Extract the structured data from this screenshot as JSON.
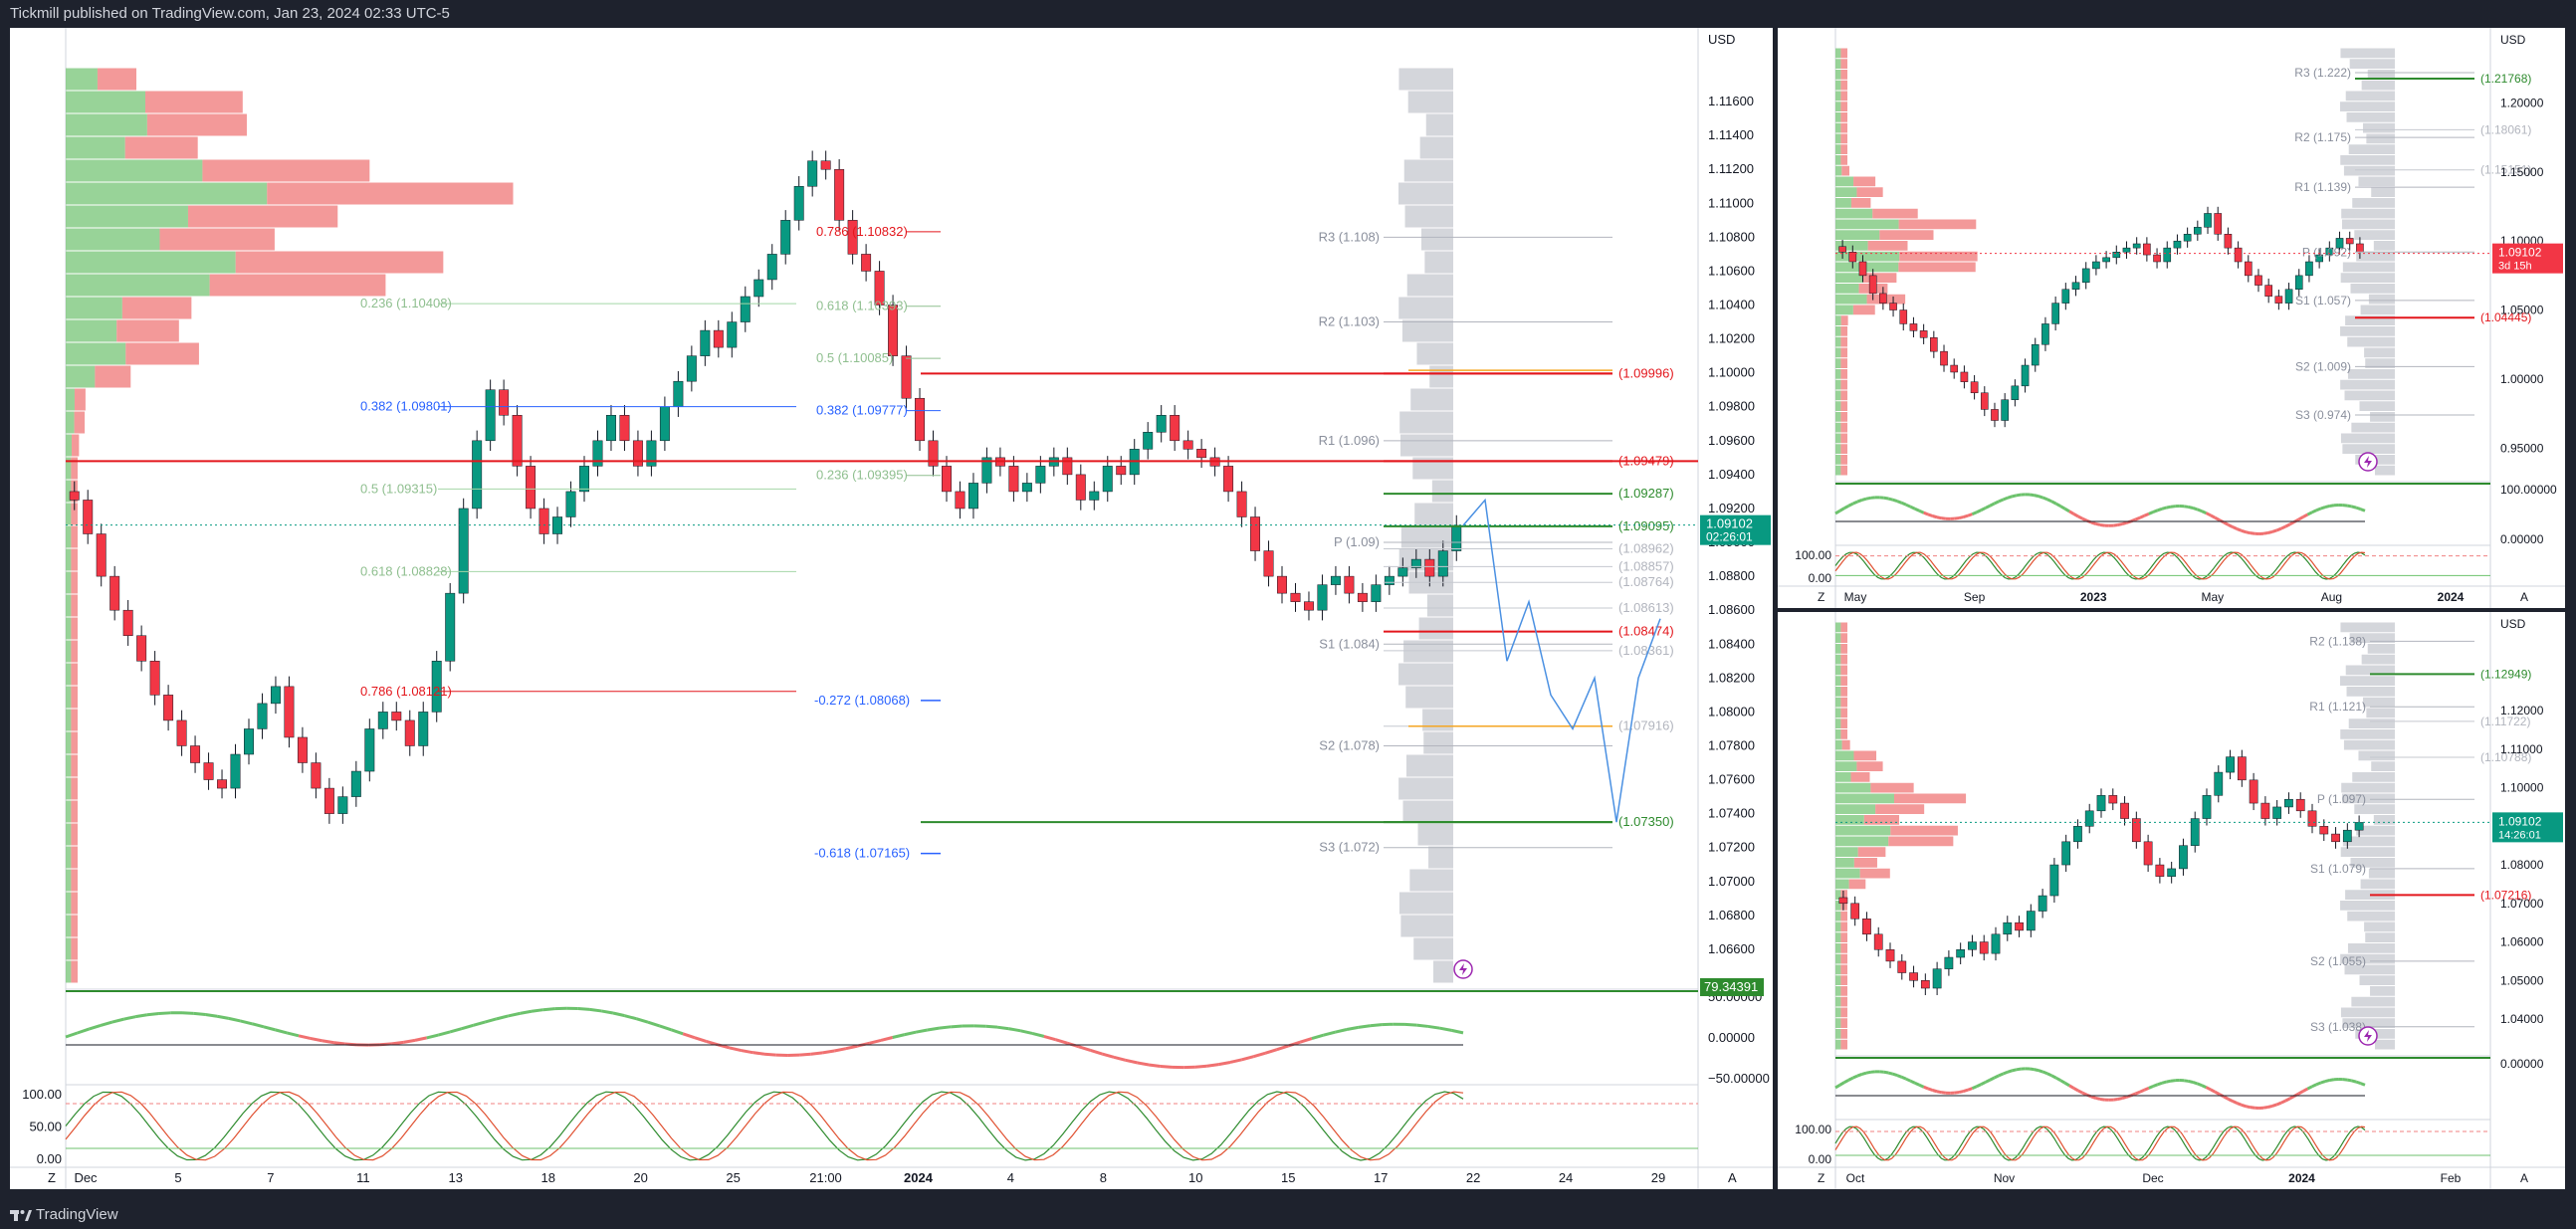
{
  "header": {
    "publisher_line": "Tickmill published on TradingView.com, Jan 23, 2024 02:33 UTC-5"
  },
  "footer": {
    "brand": "TradingView"
  },
  "colors": {
    "bull": "#089981",
    "bear": "#f23645",
    "green_line": "#2e8b2e",
    "red_line": "#e3161c",
    "bg": "#ffffff",
    "frame": "#1e222d",
    "axis_text": "#131722",
    "fib_blue": "#2962ff",
    "pivot_gray": "#8a8f9c",
    "orange": "#f5a623",
    "blue_path": "#4a90e2",
    "purple": "#9c27b0",
    "price_tag": "#089981",
    "price_tag_red": "#f23645"
  },
  "icons": [
    "tradingview-logo-icon",
    "lightning-icon"
  ],
  "chart_data": [
    {
      "type": "candlestick",
      "name": "main",
      "currency": "USD",
      "ylim": [
        1.064,
        1.118
      ],
      "y_ticks": [
        "1.11600",
        "1.11400",
        "1.11200",
        "1.11000",
        "1.10800",
        "1.10600",
        "1.10400",
        "1.10200",
        "1.10000",
        "1.09800",
        "1.09600",
        "1.09400",
        "1.09200",
        "1.09000",
        "1.08800",
        "1.08600",
        "1.08400",
        "1.08200",
        "1.08000",
        "1.07800",
        "1.07600",
        "1.07400",
        "1.07200",
        "1.07000",
        "1.06800",
        "1.06600"
      ],
      "x_ticks": [
        "Dec",
        "5",
        "7",
        "11",
        "13",
        "18",
        "20",
        "25",
        "21:00",
        "2024",
        "4",
        "8",
        "10",
        "15",
        "17",
        "22",
        "24",
        "29"
      ],
      "last_price": {
        "value": "1.09102",
        "countdown": "02:26:01"
      },
      "closes": [
        1.0925,
        1.0905,
        1.088,
        1.086,
        1.0845,
        1.083,
        1.081,
        1.0795,
        1.078,
        1.077,
        1.076,
        1.0755,
        1.0775,
        1.079,
        1.0805,
        1.0815,
        1.0785,
        1.077,
        1.0755,
        1.074,
        1.075,
        1.0765,
        1.079,
        1.08,
        1.0795,
        1.078,
        1.08,
        1.083,
        1.087,
        1.092,
        1.096,
        1.099,
        1.0975,
        1.0945,
        1.092,
        1.0905,
        1.0915,
        1.093,
        1.0945,
        1.096,
        1.0975,
        1.096,
        1.0945,
        1.096,
        1.098,
        1.0995,
        1.101,
        1.1025,
        1.1015,
        1.103,
        1.1045,
        1.1055,
        1.107,
        1.109,
        1.111,
        1.1125,
        1.112,
        1.109,
        1.107,
        1.106,
        1.104,
        1.101,
        1.0985,
        1.096,
        1.0945,
        1.093,
        1.092,
        1.0935,
        1.095,
        1.0945,
        1.093,
        1.0935,
        1.0945,
        1.095,
        1.094,
        1.0925,
        1.093,
        1.0945,
        1.094,
        1.0955,
        1.0965,
        1.0975,
        1.096,
        1.0955,
        1.095,
        1.0945,
        1.093,
        1.0915,
        1.0895,
        1.088,
        1.087,
        1.0865,
        1.086,
        1.0875,
        1.088,
        1.087,
        1.0865,
        1.0875,
        1.088,
        1.0885,
        1.089,
        1.088,
        1.0895,
        1.091
      ],
      "levels": [
        {
          "label": "R3 (1.108)",
          "value": 1.108,
          "kind": "pivot"
        },
        {
          "label": "R2 (1.103)",
          "value": 1.103,
          "kind": "pivot"
        },
        {
          "label": "R1 (1.096)",
          "value": 1.096,
          "kind": "pivot"
        },
        {
          "label": "P (1.09)",
          "value": 1.09,
          "kind": "pivot"
        },
        {
          "label": "S1 (1.084)",
          "value": 1.084,
          "kind": "pivot"
        },
        {
          "label": "S2 (1.078)",
          "value": 1.078,
          "kind": "pivot"
        },
        {
          "label": "S3 (1.072)",
          "value": 1.072,
          "kind": "pivot"
        },
        {
          "label": "(1.09996)",
          "value": 1.09996,
          "kind": "red"
        },
        {
          "label": "(1.09479)",
          "value": 1.09479,
          "kind": "red"
        },
        {
          "label": "(1.09287)",
          "value": 1.09287,
          "kind": "green"
        },
        {
          "label": "(1.09095)",
          "value": 1.09095,
          "kind": "green"
        },
        {
          "label": "(1.08962)",
          "value": 1.08962,
          "kind": "faint"
        },
        {
          "label": "(1.08857)",
          "value": 1.08857,
          "kind": "faint"
        },
        {
          "label": "(1.08764)",
          "value": 1.08764,
          "kind": "faint"
        },
        {
          "label": "(1.08613)",
          "value": 1.08613,
          "kind": "faint"
        },
        {
          "label": "(1.08474)",
          "value": 1.08474,
          "kind": "red"
        },
        {
          "label": "(1.08361)",
          "value": 1.08361,
          "kind": "faint"
        },
        {
          "label": "(1.07916)",
          "value": 1.07916,
          "kind": "faint"
        },
        {
          "label": "(1.07350)",
          "value": 1.0735,
          "kind": "green"
        }
      ],
      "fib_left": [
        {
          "label": "0.236 (1.10408)",
          "value": 1.10408
        },
        {
          "label": "0.382 (1.09801)",
          "value": 1.09801
        },
        {
          "label": "0.5 (1.09315)",
          "value": 1.09315
        },
        {
          "label": "0.618 (1.08828)",
          "value": 1.08828
        },
        {
          "label": "0.786 (1.08121)",
          "value": 1.08121
        }
      ],
      "fib_right": [
        {
          "label": "0.786 (1.10832)",
          "value": 1.10832
        },
        {
          "label": "0.618 (1.10393)",
          "value": 1.10393
        },
        {
          "label": "0.5 (1.10085)",
          "value": 1.10085
        },
        {
          "label": "0.382 (1.09777)",
          "value": 1.09777
        },
        {
          "label": "0.236 (1.09395)",
          "value": 1.09395
        }
      ],
      "fib_ext": [
        {
          "label": "-0.272 (1.08068)",
          "value": 1.08068
        },
        {
          "label": "-0.618 (1.07165)",
          "value": 1.07165
        }
      ],
      "forecast_path": [
        [
          0,
          1.091
        ],
        [
          1,
          1.0925
        ],
        [
          2,
          1.083
        ],
        [
          3,
          1.0865
        ],
        [
          4,
          1.081
        ],
        [
          5,
          1.079
        ],
        [
          6,
          1.082
        ],
        [
          7,
          1.0735
        ],
        [
          8,
          1.082
        ],
        [
          9,
          1.0855
        ]
      ],
      "osc1": {
        "ticks": [
          "50.00000",
          "0.00000",
          "−50.00000"
        ],
        "label": "79.34391"
      },
      "osc2": {
        "ticks": [
          "100.00",
          "50.00",
          "0.00"
        ]
      }
    },
    {
      "type": "candlestick",
      "name": "top-right",
      "currency": "USD",
      "ylim": [
        0.93,
        1.24
      ],
      "y_ticks": [
        "1.20000",
        "1.15000",
        "1.10000",
        "1.05000",
        "1.00000",
        "0.95000"
      ],
      "x_ticks": [
        "May",
        "Sep",
        "2023",
        "May",
        "Aug",
        "2024"
      ],
      "last_price": {
        "value": "1.09102",
        "countdown": "3d 15h"
      },
      "closes": [
        1.092,
        1.085,
        1.075,
        1.062,
        1.055,
        1.05,
        1.04,
        1.035,
        1.03,
        1.02,
        1.01,
        1.005,
        0.998,
        0.99,
        0.978,
        0.97,
        0.985,
        0.995,
        1.01,
        1.025,
        1.04,
        1.055,
        1.065,
        1.07,
        1.08,
        1.085,
        1.088,
        1.092,
        1.095,
        1.098,
        1.09,
        1.085,
        1.095,
        1.1,
        1.105,
        1.11,
        1.12,
        1.105,
        1.095,
        1.085,
        1.075,
        1.068,
        1.06,
        1.055,
        1.065,
        1.075,
        1.085,
        1.09,
        1.095,
        1.102,
        1.098,
        1.092
      ],
      "levels": [
        {
          "label": "R3 (1.222)",
          "value": 1.222,
          "kind": "pivot"
        },
        {
          "label": "R2 (1.175)",
          "value": 1.175,
          "kind": "pivot"
        },
        {
          "label": "R1 (1.139)",
          "value": 1.139,
          "kind": "pivot"
        },
        {
          "label": "P (1.092)",
          "value": 1.092,
          "kind": "pivot"
        },
        {
          "label": "S1 (1.057)",
          "value": 1.057,
          "kind": "pivot"
        },
        {
          "label": "S2 (1.009)",
          "value": 1.009,
          "kind": "pivot"
        },
        {
          "label": "S3 (0.974)",
          "value": 0.974,
          "kind": "pivot"
        },
        {
          "label": "(1.21768)",
          "value": 1.21768,
          "kind": "green"
        },
        {
          "label": "(1.18061)",
          "value": 1.18061,
          "kind": "faint"
        },
        {
          "label": "(1.15151)",
          "value": 1.15151,
          "kind": "faint"
        },
        {
          "label": "(1.04445)",
          "value": 1.04445,
          "kind": "red"
        }
      ],
      "osc1": {
        "ticks": [
          "100.00000",
          "0.00000"
        ]
      },
      "osc2": {
        "ticks": [
          "100.00",
          "0.00"
        ]
      }
    },
    {
      "type": "candlestick",
      "name": "bottom-right",
      "currency": "USD",
      "ylim": [
        1.032,
        1.143
      ],
      "y_ticks": [
        "1.12000",
        "1.11000",
        "1.10000",
        "1.09000",
        "1.08000",
        "1.07000",
        "1.06000",
        "1.05000",
        "1.04000"
      ],
      "x_ticks": [
        "Oct",
        "Nov",
        "Dec",
        "2024",
        "Feb"
      ],
      "last_price": {
        "value": "1.09102",
        "countdown": "14:26:01"
      },
      "closes": [
        1.07,
        1.066,
        1.062,
        1.058,
        1.055,
        1.052,
        1.05,
        1.048,
        1.053,
        1.056,
        1.058,
        1.06,
        1.057,
        1.062,
        1.065,
        1.063,
        1.068,
        1.072,
        1.08,
        1.086,
        1.09,
        1.094,
        1.098,
        1.096,
        1.092,
        1.086,
        1.08,
        1.077,
        1.079,
        1.085,
        1.092,
        1.098,
        1.104,
        1.108,
        1.102,
        1.096,
        1.092,
        1.095,
        1.097,
        1.094,
        1.09,
        1.088,
        1.086,
        1.089,
        1.091
      ],
      "levels": [
        {
          "label": "R2 (1.138)",
          "value": 1.138,
          "kind": "pivot"
        },
        {
          "label": "R1 (1.121)",
          "value": 1.121,
          "kind": "pivot"
        },
        {
          "label": "P (1.097)",
          "value": 1.097,
          "kind": "pivot"
        },
        {
          "label": "S1 (1.079)",
          "value": 1.079,
          "kind": "pivot"
        },
        {
          "label": "S2 (1.055)",
          "value": 1.055,
          "kind": "pivot"
        },
        {
          "label": "S3 (1.038)",
          "value": 1.038,
          "kind": "pivot"
        },
        {
          "label": "(1.12949)",
          "value": 1.12949,
          "kind": "green"
        },
        {
          "label": "(1.11722)",
          "value": 1.11722,
          "kind": "faint"
        },
        {
          "label": "(1.10788)",
          "value": 1.10788,
          "kind": "faint"
        },
        {
          "label": "(1.07216)",
          "value": 1.07216,
          "kind": "red"
        }
      ],
      "osc1": {
        "ticks": [
          "0.00000"
        ]
      },
      "osc2": {
        "ticks": [
          "100.00",
          "0.00"
        ]
      }
    }
  ]
}
